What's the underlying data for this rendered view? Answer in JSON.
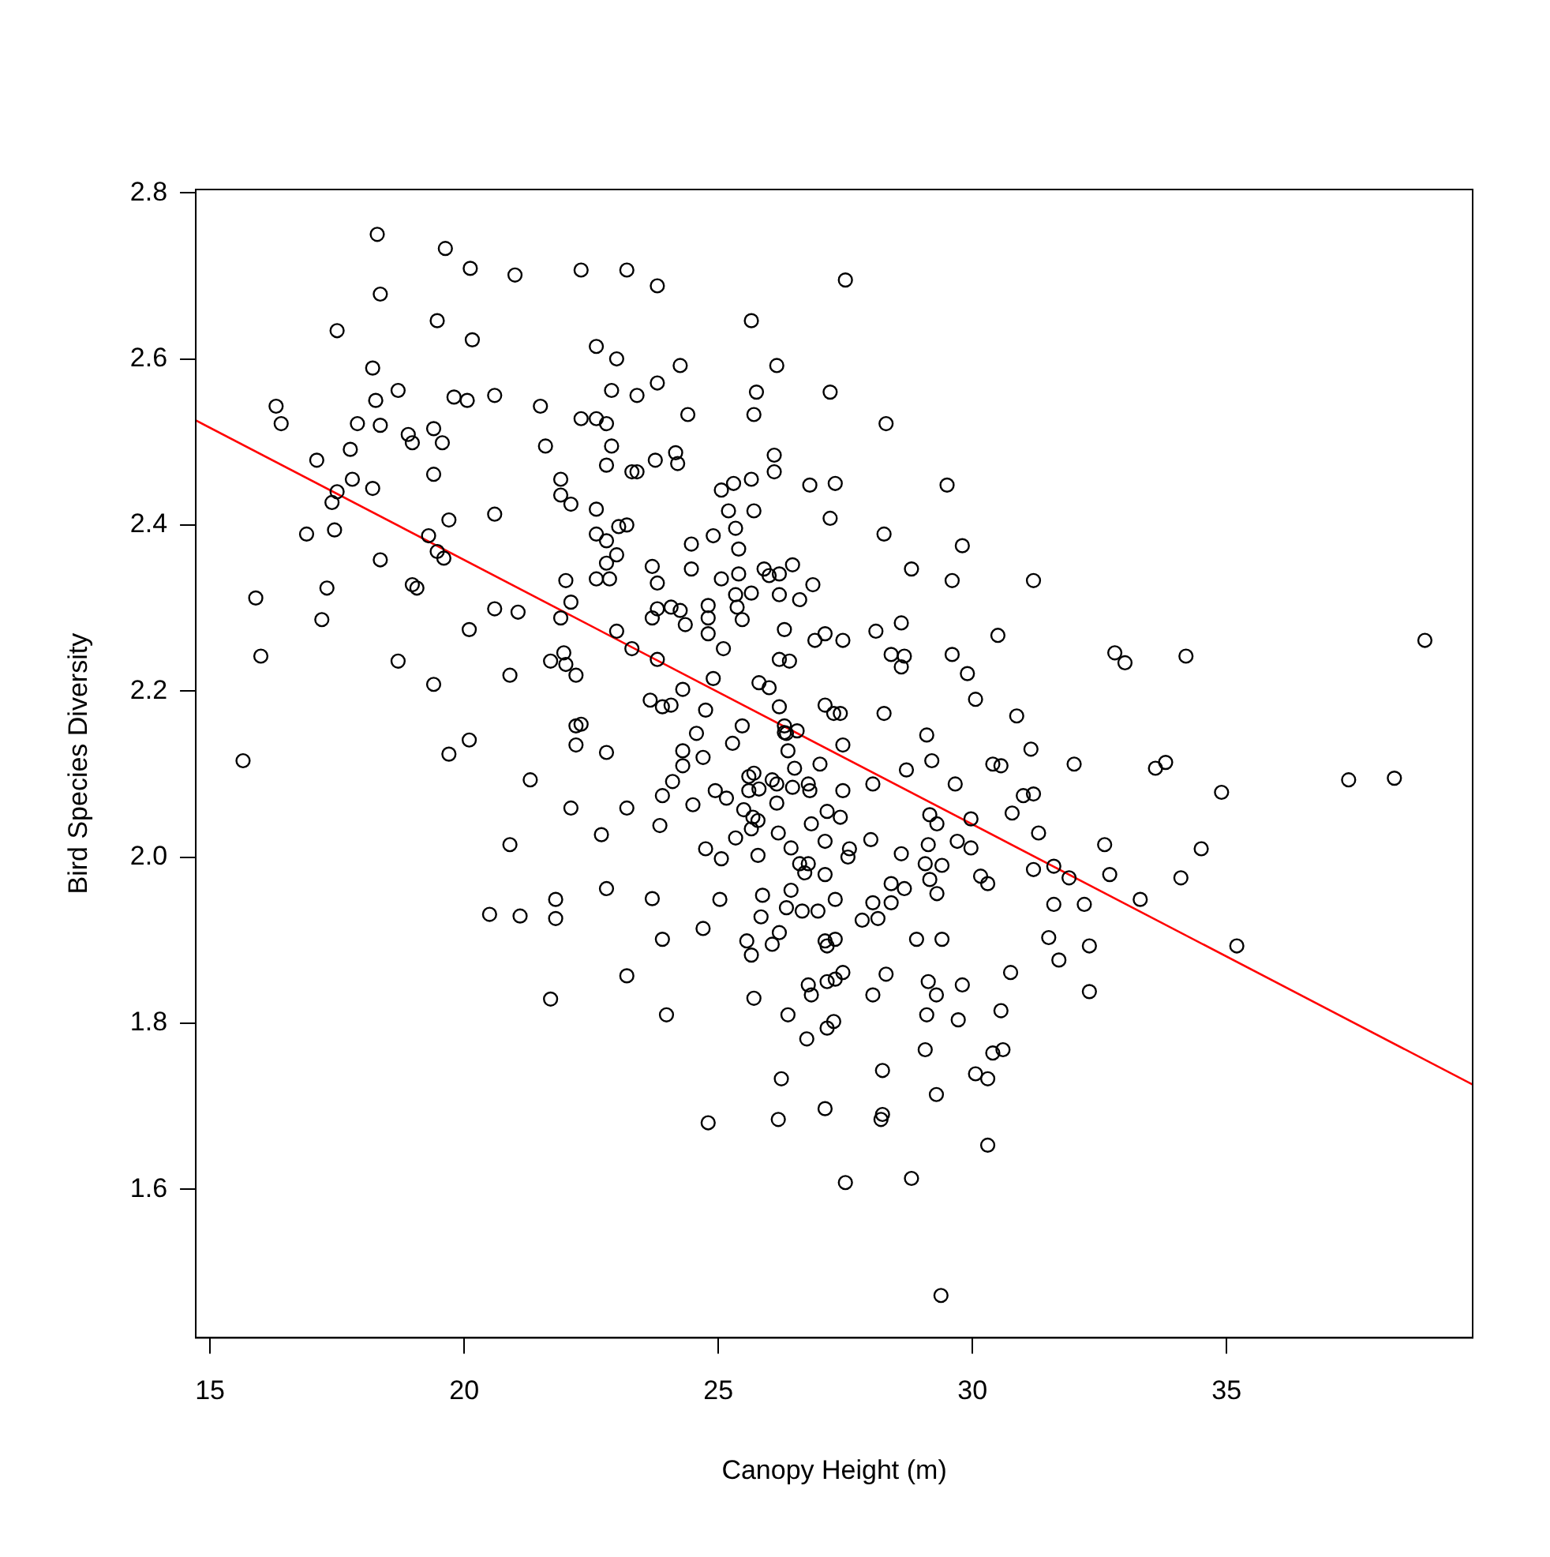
{
  "chart_data": {
    "type": "scatter",
    "xlabel": "Canopy Height (m)",
    "ylabel": "Bird Species Diversity",
    "xlim": [
      14.72,
      39.84
    ],
    "ylim": [
      1.421,
      2.804
    ],
    "xticks": [
      15,
      20,
      25,
      30,
      35
    ],
    "yticks": [
      1.6,
      1.8,
      {
        "value": 2,
        "label": "2.0"
      },
      2.2,
      2.4,
      2.6,
      2.8
    ],
    "grid": false,
    "legend": false,
    "marker": "circle",
    "series": [
      {
        "type": "scatter",
        "color": "#000000",
        "x": [
          15.65,
          19.4,
          20.1,
          19.7,
          22.2,
          22.3,
          22.2,
          22.8,
          21.3,
          22.1,
          22.7,
          20.9,
          22.8,
          21.8,
          20.5,
          21.1,
          21.8,
          21.7,
          18.29,
          19.63,
          20.12,
          21.0,
          22.3,
          18.35,
          17.5,
          19.47,
          20.16,
          22.6,
          18.2,
          18.7,
          18.26,
          19.8,
          20.06,
          20.6,
          16.3,
          16.4,
          17.9,
          18.35,
          21.5,
          22.3,
          22.6,
          22.8,
          18.9,
          18.98,
          19.4,
          19.57,
          17.76,
          21.6,
          17.1,
          19.4,
          17.8,
          18.2,
          17.5,
          17.4,
          21.9,
          21.9,
          22.1,
          22.6,
          20.6,
          19.7,
          16.9,
          17.45,
          19.3,
          22.6,
          22.8,
          19.47,
          19.6,
          18.35,
          22.8,
          22.6,
          22.86,
          22.0,
          15.9,
          17.3,
          18.98,
          19.07,
          22.1,
          20.6,
          21.06,
          17.2,
          20.1,
          21.9,
          16.0,
          18.7,
          20.9,
          21.7,
          21.96,
          22.0,
          22.2,
          23.2,
          23.8,
          27.5,
          25.65,
          23.0,
          24.25,
          26.15,
          23.8,
          22.9,
          23.4,
          25.75,
          27.2,
          24.4,
          25.7,
          28.3,
          22.9,
          23.76,
          24.16,
          24.2,
          22.8,
          23.3,
          23.4,
          26.1,
          26.1,
          25.06,
          25.3,
          25.65,
          26.8,
          27.3,
          29.5,
          25.2,
          25.7,
          27.2,
          23.04,
          23.2,
          24.9,
          24.47,
          25.34,
          25.4,
          28.26,
          29.8,
          23.0,
          23.7,
          23.8,
          24.47,
          25.06,
          25.4,
          25.9,
          26.0,
          26.2,
          26.46,
          26.86,
          28.8,
          29.6,
          25.34,
          25.65,
          26.2,
          26.6,
          23.0,
          23.3,
          23.7,
          23.8,
          24.07,
          24.25,
          24.35,
          23.8,
          24.8,
          24.8,
          24.8,
          25.1,
          25.37,
          25.47,
          26.3,
          26.9,
          27.1,
          27.45,
          28.1,
          28.6,
          28.4,
          28.66,
          28.6,
          29.6,
          29.9,
          30.5,
          26.2,
          26.4,
          24.9,
          25.8,
          26.0,
          24.3,
          31.2,
          32.8,
          33.0,
          34.2,
          38.9,
          31.15,
          32.0,
          33.6,
          33.8,
          34.9,
          37.4,
          38.3,
          31.2,
          31.3,
          32.6,
          34.5,
          31.2,
          31.6,
          31.9,
          32.7,
          34.1,
          31.6,
          32.2,
          33.3,
          31.5,
          32.3,
          35.2,
          31.7,
          32.3,
          23.66,
          23.9,
          24.07,
          24.75,
          26.2,
          26.3,
          26.3,
          26.34,
          26.55,
          27.1,
          27.27,
          27.4,
          28.26,
          30.06,
          30.87,
          29.1,
          25.47,
          25.28,
          24.57,
          24.3,
          24.3,
          24.7,
          26.37,
          26.5,
          27.0,
          27.45,
          29.2,
          30.4,
          30.56,
          24.1,
          23.9,
          23.2,
          23.85,
          24.5,
          24.94,
          25.16,
          25.5,
          25.7,
          25.6,
          25.6,
          25.8,
          26.06,
          26.15,
          26.46,
          26.15,
          26.77,
          26.8,
          27.45,
          28.04,
          28.7,
          29.66,
          29.97,
          30.78,
          31.0,
          25.68,
          25.78,
          25.65,
          25.34,
          26.18,
          27.14,
          27.4,
          26.83,
          27.1,
          28.0,
          29.16,
          29.3,
          29.7,
          29.97,
          24.75,
          25.06,
          25.78,
          26.43,
          27.58,
          27.55,
          26.6,
          26.77,
          26.7,
          27.1,
          28.6,
          29.13,
          29.07,
          29.4,
          29.16,
          29.3,
          30.16,
          30.3,
          23.7,
          25.03,
          25.87,
          26.43,
          26.34,
          26.65,
          26.96,
          27.3,
          28.04,
          28.4,
          28.66,
          28.4,
          27.83,
          28.14,
          24.7,
          25.84,
          23.9,
          25.56,
          25.65,
          26.06,
          26.2,
          27.1,
          27.14,
          27.3,
          28.9,
          29.4,
          23.2,
          25.7,
          26.77,
          26.83,
          27.14,
          27.3,
          27.45,
          28.3,
          28.04,
          29.13,
          29.29,
          29.8,
          30.75,
          23.98,
          26.37,
          27.27,
          27.14,
          26.74,
          29.1,
          29.72,
          30.56,
          29.07,
          30.4,
          30.6,
          26.24,
          28.23,
          30.06,
          30.3,
          29.29,
          24.8,
          26.18,
          27.1,
          28.23,
          28.2,
          30.3,
          28.8,
          27.5,
          29.38
        ],
        "values": [
          2.116,
          2.208,
          2.141,
          2.124,
          2.158,
          2.16,
          2.135,
          2.126,
          2.093,
          2.059,
          2.027,
          2.015,
          1.962,
          1.949,
          1.931,
          1.929,
          1.926,
          1.829,
          2.75,
          2.733,
          2.709,
          2.701,
          2.707,
          2.678,
          2.634,
          2.646,
          2.623,
          2.615,
          2.589,
          2.562,
          2.55,
          2.554,
          2.55,
          2.556,
          2.543,
          2.522,
          2.522,
          2.52,
          2.543,
          2.528,
          2.528,
          2.522,
          2.509,
          2.499,
          2.516,
          2.499,
          2.491,
          2.495,
          2.478,
          2.461,
          2.455,
          2.444,
          2.44,
          2.427,
          2.455,
          2.436,
          2.425,
          2.419,
          2.413,
          2.406,
          2.389,
          2.394,
          2.387,
          2.389,
          2.381,
          2.368,
          2.36,
          2.358,
          2.354,
          2.335,
          2.335,
          2.333,
          2.312,
          2.324,
          2.328,
          2.324,
          2.307,
          2.299,
          2.295,
          2.286,
          2.274,
          2.288,
          2.242,
          2.236,
          2.219,
          2.236,
          2.246,
          2.232,
          2.219,
          2.707,
          2.688,
          2.695,
          2.646,
          2.6,
          2.592,
          2.592,
          2.571,
          2.562,
          2.556,
          2.56,
          2.56,
          2.533,
          2.533,
          2.522,
          2.495,
          2.478,
          2.487,
          2.474,
          2.472,
          2.464,
          2.464,
          2.484,
          2.464,
          2.442,
          2.45,
          2.455,
          2.448,
          2.45,
          2.448,
          2.417,
          2.417,
          2.408,
          2.398,
          2.4,
          2.387,
          2.377,
          2.396,
          2.371,
          2.389,
          2.375,
          2.364,
          2.35,
          2.33,
          2.347,
          2.335,
          2.341,
          2.347,
          2.339,
          2.341,
          2.352,
          2.328,
          2.347,
          2.333,
          2.316,
          2.318,
          2.316,
          2.31,
          2.272,
          2.251,
          2.288,
          2.299,
          2.301,
          2.297,
          2.28,
          2.238,
          2.303,
          2.288,
          2.269,
          2.251,
          2.301,
          2.286,
          2.274,
          2.261,
          2.269,
          2.261,
          2.272,
          2.282,
          2.244,
          2.242,
          2.229,
          2.244,
          2.221,
          2.267,
          2.238,
          2.236,
          2.215,
          2.21,
          2.204,
          2.202,
          2.333,
          2.246,
          2.234,
          2.242,
          2.261,
          2.13,
          2.112,
          2.107,
          2.114,
          2.078,
          2.093,
          2.095,
          2.076,
          2.029,
          2.015,
          2.01,
          1.985,
          1.989,
          1.975,
          1.979,
          1.975,
          1.943,
          1.943,
          1.949,
          1.903,
          1.893,
          1.893,
          1.876,
          1.838,
          2.189,
          2.181,
          2.183,
          2.177,
          2.181,
          2.158,
          2.15,
          2.149,
          2.152,
          2.183,
          2.173,
          2.173,
          2.173,
          2.19,
          2.17,
          2.147,
          2.158,
          2.137,
          2.149,
          2.128,
          2.11,
          2.12,
          2.128,
          2.107,
          2.112,
          2.135,
          2.116,
          2.112,
          2.11,
          2.091,
          2.074,
          2.059,
          2.038,
          2.063,
          2.08,
          2.071,
          2.057,
          2.101,
          2.097,
          2.08,
          2.082,
          2.093,
          2.088,
          2.084,
          2.065,
          2.088,
          2.08,
          2.08,
          2.088,
          2.105,
          2.088,
          2.046,
          2.053,
          2.074,
          2.048,
          2.044,
          2.034,
          2.023,
          2.029,
          2.055,
          2.048,
          2.04,
          2.019,
          2.021,
          2.051,
          2.04,
          2.019,
          2.011,
          2.01,
          1.998,
          2.002,
          2.011,
          2.01,
          2.0,
          1.992,
          1.992,
          1.981,
          1.979,
          2.004,
          2.015,
          1.992,
          1.99,
          1.973,
          1.956,
          1.977,
          1.968,
          1.95,
          1.949,
          1.954,
          1.96,
          1.939,
          1.935,
          1.935,
          1.949,
          1.945,
          1.968,
          1.962,
          1.945,
          1.924,
          1.926,
          1.914,
          1.928,
          1.901,
          1.899,
          1.882,
          1.895,
          1.909,
          1.899,
          1.893,
          1.901,
          1.901,
          1.901,
          1.857,
          1.83,
          1.846,
          1.834,
          1.85,
          1.853,
          1.861,
          1.859,
          1.834,
          1.85,
          1.834,
          1.846,
          1.861,
          1.81,
          1.81,
          1.802,
          1.794,
          1.781,
          1.81,
          1.804,
          1.815,
          1.768,
          1.764,
          1.768,
          1.733,
          1.743,
          1.739,
          1.733,
          1.714,
          1.68,
          1.684,
          1.697,
          1.69,
          1.684,
          1.653,
          1.613,
          1.608,
          1.472
        ]
      },
      {
        "type": "line",
        "color": "#ff0000",
        "marker": "none",
        "x": [
          14.72,
          39.84
        ],
        "values": [
          2.526,
          1.726
        ]
      }
    ]
  }
}
